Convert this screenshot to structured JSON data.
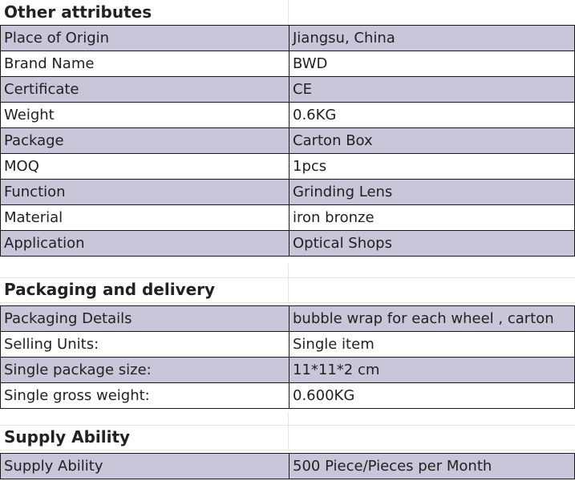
{
  "sections": [
    {
      "title": "Other attributes",
      "rows": [
        [
          "Place of Origin",
          "Jiangsu, China"
        ],
        [
          "Brand Name",
          "BWD"
        ],
        [
          "Certificate",
          "CE"
        ],
        [
          "Weight",
          "0.6KG"
        ],
        [
          "Package",
          "Carton Box"
        ],
        [
          "MOQ",
          "1pcs"
        ],
        [
          "Function",
          "Grinding Lens"
        ],
        [
          "Material",
          "iron bronze"
        ],
        [
          "Application",
          "Optical Shops"
        ]
      ]
    },
    {
      "title": "Packaging and delivery",
      "rows": [
        [
          "Packaging Details",
          "bubble wrap for each wheel , carton"
        ],
        [
          "Selling Units:",
          "Single item"
        ],
        [
          "Single package size:",
          "11*11*2 cm"
        ],
        [
          "Single gross weight:",
          "0.600KG"
        ]
      ]
    },
    {
      "title": "Supply Ability",
      "rows": [
        [
          "Supply Ability",
          "500 Piece/Pieces per Month"
        ]
      ]
    }
  ],
  "colors": {
    "row_alt": "#c8c6d8",
    "border": "#1a1a1a"
  }
}
